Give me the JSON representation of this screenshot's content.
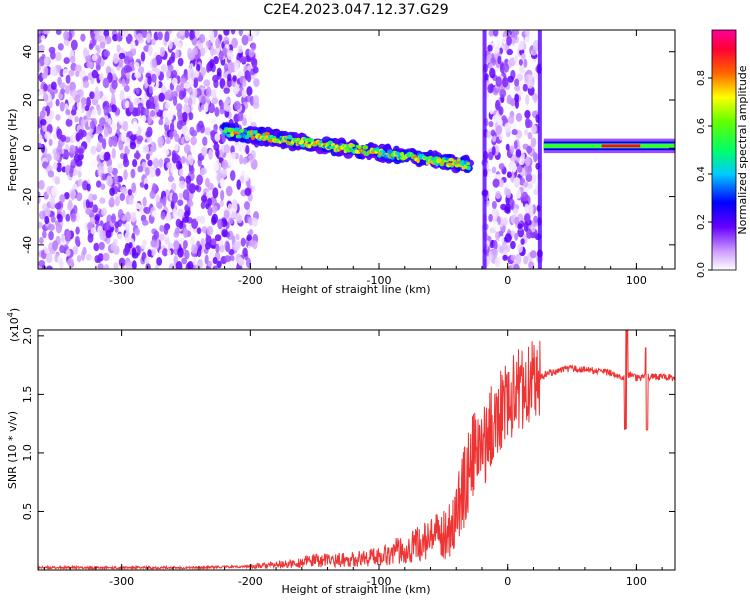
{
  "figure_title": "C2E4.2023.047.12.37.G29",
  "chart_data": [
    {
      "type": "heatmap",
      "xlabel": "Height of straight line (km)",
      "ylabel": "Frequency (Hz)",
      "xlim": [
        -365,
        130
      ],
      "ylim": [
        -50,
        49
      ],
      "x_ticks": [
        -300,
        -200,
        -100,
        0,
        100
      ],
      "x_tick_labels": [
        "-300",
        "-200",
        "-100",
        "0",
        "100"
      ],
      "y_ticks": [
        -40,
        -20,
        0,
        20,
        40
      ],
      "y_tick_labels": [
        "-40",
        "-20",
        "0",
        "20",
        "40"
      ],
      "colorbar": {
        "label": "Normalized spectral amplitude",
        "range": [
          0,
          1
        ],
        "ticks": [
          0.0,
          0.2,
          0.4,
          0.6,
          0.8
        ],
        "tick_labels": [
          "0.0",
          "0.2",
          "0.4",
          "0.6",
          "0.8"
        ],
        "colormap": [
          "#ffffff",
          "#cc99ff",
          "#6600ff",
          "#0000ff",
          "#00ccff",
          "#00ff66",
          "#66ff00",
          "#ffff00",
          "#ff6600",
          "#ff0033",
          "#ff0099"
        ]
      },
      "regions": [
        {
          "x": [
            -365,
            -195
          ],
          "y": [
            -50,
            49
          ],
          "level": 0.18,
          "description": "scattered noise"
        },
        {
          "x": [
            -220,
            -30
          ],
          "y_start": 7,
          "y_end": -7,
          "level": 0.45,
          "description": "signal trace"
        },
        {
          "x": [
            -18,
            25
          ],
          "y": [
            -50,
            49
          ],
          "level": 0.18,
          "description": "scattered noise"
        },
        {
          "x": [
            28,
            130
          ],
          "y": [
            1,
            1
          ],
          "level": 0.55,
          "description": "steady signal band"
        }
      ]
    },
    {
      "type": "line",
      "xlabel": "Height of straight line (km)",
      "ylabel": "SNR (10 * v/v)",
      "y_multiplier_label": "(x10",
      "y_multiplier_exp": "4",
      "xlim": [
        -365,
        130
      ],
      "ylim": [
        0,
        2.05
      ],
      "x_ticks": [
        -300,
        -200,
        -100,
        0,
        100
      ],
      "x_tick_labels": [
        "-300",
        "-200",
        "-100",
        "0",
        "100"
      ],
      "y_ticks": [
        0.5,
        1.0,
        1.5,
        2.0
      ],
      "y_tick_labels": [
        "0.5",
        "1.0",
        "1.5",
        "2.0"
      ],
      "color": "#ee3333",
      "series": [
        {
          "x": [
            -365,
            -300,
            -250,
            -200,
            -170,
            -150,
            -120,
            -100,
            -80,
            -60,
            -50,
            -40,
            -35,
            -30,
            -25,
            -20,
            -15,
            -10,
            -5,
            0,
            5,
            10,
            15,
            20,
            25,
            30,
            40,
            50,
            60,
            70,
            80,
            90,
            95,
            100,
            110,
            120,
            130
          ],
          "y": [
            0.02,
            0.02,
            0.02,
            0.03,
            0.05,
            0.08,
            0.09,
            0.12,
            0.18,
            0.26,
            0.3,
            0.45,
            0.65,
            0.88,
            1.02,
            1.02,
            1.15,
            1.3,
            1.4,
            1.45,
            1.5,
            1.55,
            1.6,
            1.62,
            1.64,
            1.68,
            1.7,
            1.72,
            1.71,
            1.7,
            1.68,
            1.65,
            1.66,
            1.64,
            1.65,
            1.65,
            1.64
          ]
        }
      ]
    }
  ]
}
